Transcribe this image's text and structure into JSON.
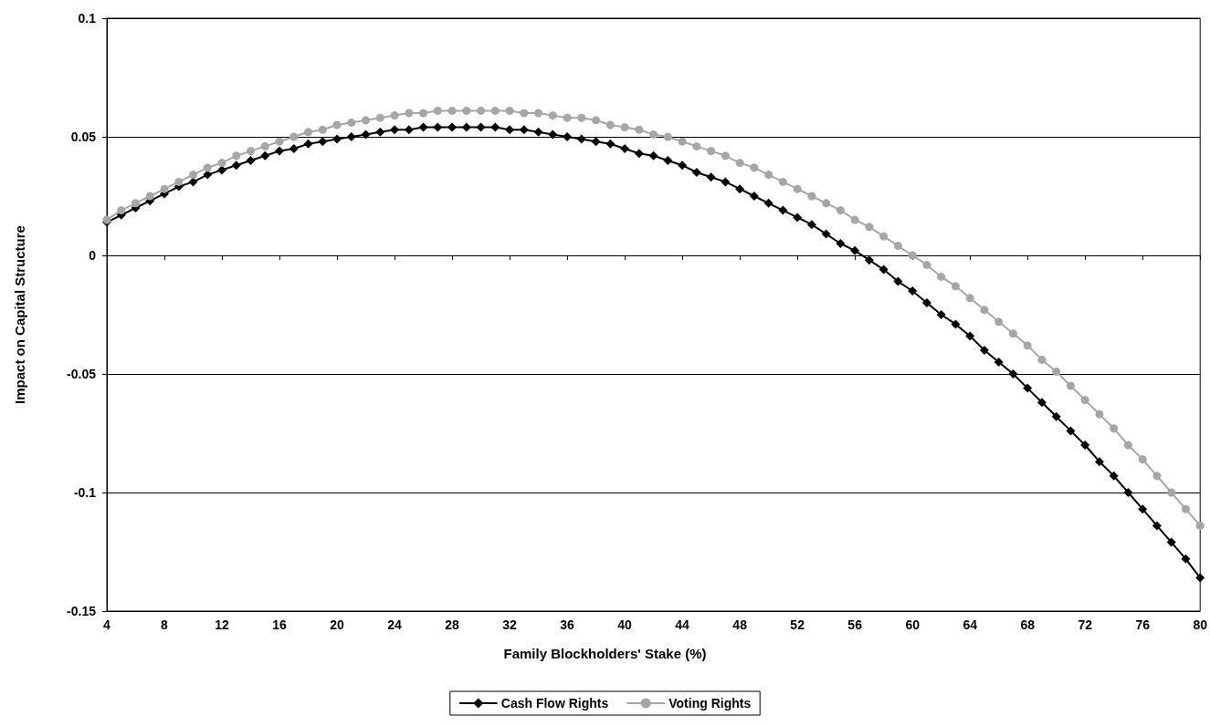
{
  "chart_data": {
    "type": "line",
    "xlabel": "Family Blockholders' Stake (%)",
    "ylabel": "Impact on Capital Structure",
    "x": [
      4,
      5,
      6,
      7,
      8,
      9,
      10,
      11,
      12,
      13,
      14,
      15,
      16,
      17,
      18,
      19,
      20,
      21,
      22,
      23,
      24,
      25,
      26,
      27,
      28,
      29,
      30,
      31,
      32,
      33,
      34,
      35,
      36,
      37,
      38,
      39,
      40,
      41,
      42,
      43,
      44,
      45,
      46,
      47,
      48,
      49,
      50,
      51,
      52,
      53,
      54,
      55,
      56,
      57,
      58,
      59,
      60,
      61,
      62,
      63,
      64,
      65,
      66,
      67,
      68,
      69,
      70,
      71,
      72,
      73,
      74,
      75,
      76,
      77,
      78,
      79,
      80
    ],
    "series": [
      {
        "name": "Cash Flow Rights",
        "color": "#000000",
        "marker": "diamond",
        "values": [
          0.014,
          0.017,
          0.02,
          0.023,
          0.026,
          0.029,
          0.031,
          0.034,
          0.036,
          0.038,
          0.04,
          0.042,
          0.044,
          0.045,
          0.047,
          0.048,
          0.049,
          0.05,
          0.051,
          0.052,
          0.053,
          0.053,
          0.054,
          0.054,
          0.054,
          0.054,
          0.054,
          0.054,
          0.053,
          0.053,
          0.052,
          0.051,
          0.05,
          0.049,
          0.048,
          0.047,
          0.045,
          0.043,
          0.042,
          0.04,
          0.038,
          0.035,
          0.033,
          0.031,
          0.028,
          0.025,
          0.022,
          0.019,
          0.016,
          0.013,
          0.009,
          0.005,
          0.002,
          -0.002,
          -0.006,
          -0.011,
          -0.015,
          -0.02,
          -0.025,
          -0.029,
          -0.034,
          -0.04,
          -0.045,
          -0.05,
          -0.056,
          -0.062,
          -0.068,
          -0.074,
          -0.08,
          -0.087,
          -0.093,
          -0.1,
          -0.107,
          -0.114,
          -0.121,
          -0.128,
          -0.136
        ]
      },
      {
        "name": "Voting Rights",
        "color": "#a6a6a6",
        "marker": "circle",
        "values": [
          0.015,
          0.019,
          0.022,
          0.025,
          0.028,
          0.031,
          0.034,
          0.037,
          0.039,
          0.042,
          0.044,
          0.046,
          0.048,
          0.05,
          0.052,
          0.053,
          0.055,
          0.056,
          0.057,
          0.058,
          0.059,
          0.06,
          0.06,
          0.061,
          0.061,
          0.061,
          0.061,
          0.061,
          0.061,
          0.06,
          0.06,
          0.059,
          0.058,
          0.058,
          0.057,
          0.055,
          0.054,
          0.053,
          0.051,
          0.05,
          0.048,
          0.046,
          0.044,
          0.042,
          0.039,
          0.037,
          0.034,
          0.031,
          0.028,
          0.025,
          0.022,
          0.019,
          0.015,
          0.012,
          0.008,
          0.004,
          0.0,
          -0.004,
          -0.009,
          -0.013,
          -0.018,
          -0.023,
          -0.028,
          -0.033,
          -0.038,
          -0.044,
          -0.049,
          -0.055,
          -0.061,
          -0.067,
          -0.073,
          -0.08,
          -0.086,
          -0.093,
          -0.1,
          -0.107,
          -0.114
        ]
      }
    ],
    "xlim": [
      4,
      80
    ],
    "xticks": [
      4,
      8,
      12,
      16,
      20,
      24,
      28,
      32,
      36,
      40,
      44,
      48,
      52,
      56,
      60,
      64,
      68,
      72,
      76,
      80
    ],
    "ylim": [
      -0.15,
      0.1
    ],
    "yticks": [
      -0.15,
      -0.1,
      -0.05,
      0,
      0.05,
      0.1
    ],
    "grid": "y",
    "legend": "bottom",
    "line_style": "solid"
  }
}
